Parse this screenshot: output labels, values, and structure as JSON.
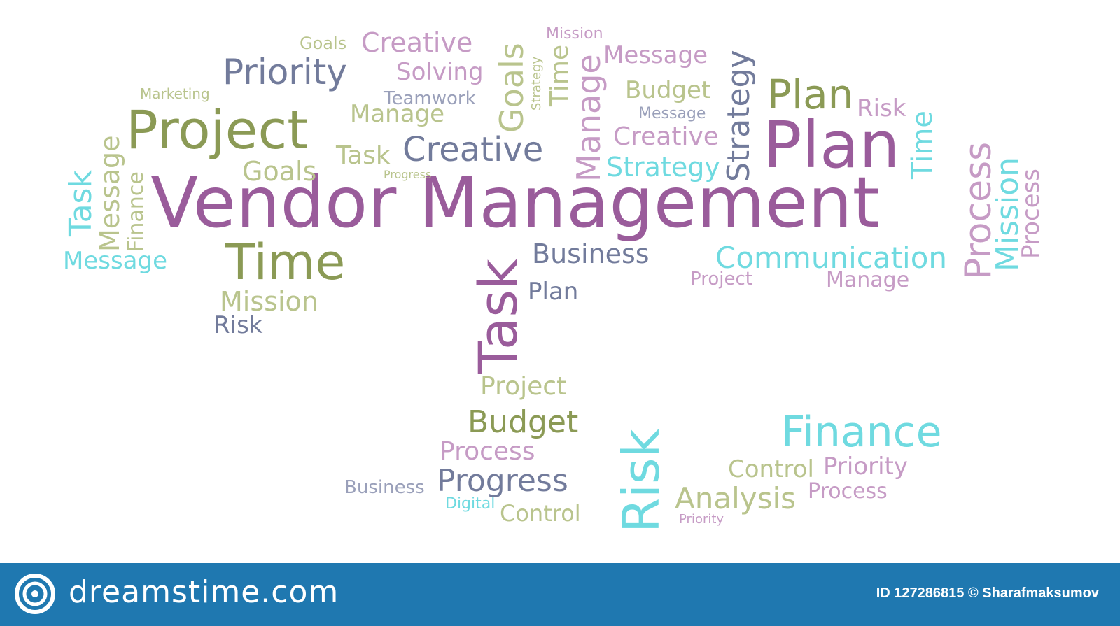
{
  "words": {
    "vendor_management": "Vendor Management",
    "plan": "Plan",
    "project": "Project",
    "priority": "Priority",
    "creative": "Creative",
    "creative_top": "Creative",
    "creative_right": "Creative",
    "time": "Time",
    "task_vertical": "Task",
    "goals_top": "Goals",
    "goals_vertical": "Goals",
    "goals_mid": "Goals",
    "mission_top": "Mission",
    "mission_left": "Mission",
    "message_top": "Message",
    "message_small": "Message",
    "message_left": "Message",
    "solving": "Solving",
    "teamwork": "Teamwork",
    "marketing": "Marketing",
    "manage": "Manage",
    "task": "Task",
    "progress_small": "Progress",
    "budget_top": "Budget",
    "plan_small": "Plan",
    "risk_top": "Risk",
    "strategy": "Strategy",
    "strategy_v": "Strategy",
    "time_v": "Time",
    "time_right": "Time",
    "manage_v": "Manage",
    "business": "Business",
    "communication": "Communication",
    "project_small": "Project",
    "manage_right": "Manage",
    "process_v": "Process",
    "mission_v": "Mission",
    "process_v2": "Process",
    "task_left": "Task",
    "message_v": "Message",
    "finance_v": "Finance",
    "mission_mid": "Mission",
    "risk_mid": "Risk",
    "plan_mid": "Plan",
    "project_mid": "Project",
    "budget": "Budget",
    "finance": "Finance",
    "risk_big": "Risk",
    "process": "Process",
    "progress": "Progress",
    "analysis": "Analysis",
    "control": "Control",
    "priority_right": "Priority",
    "process_right": "Process",
    "business_bottom": "Business",
    "digital_bottom": "Digital",
    "control_bottom": "Control",
    "priority_bottom": "Priority",
    "strategy_tiny": "Strategy",
    "marketing_top": "Marketing",
    "goals_tiny": "Goals"
  },
  "footer": {
    "brand": "dreamstime.com",
    "credit": "ID 127286815 © Sharafmaksumov"
  },
  "colors": {
    "purple": "#9a5c9b",
    "olive": "#8b9a55",
    "slate": "#727b9b",
    "cyan": "#6fdae0",
    "pink": "#c69bc5",
    "footer_bg": "#1f78b0"
  }
}
